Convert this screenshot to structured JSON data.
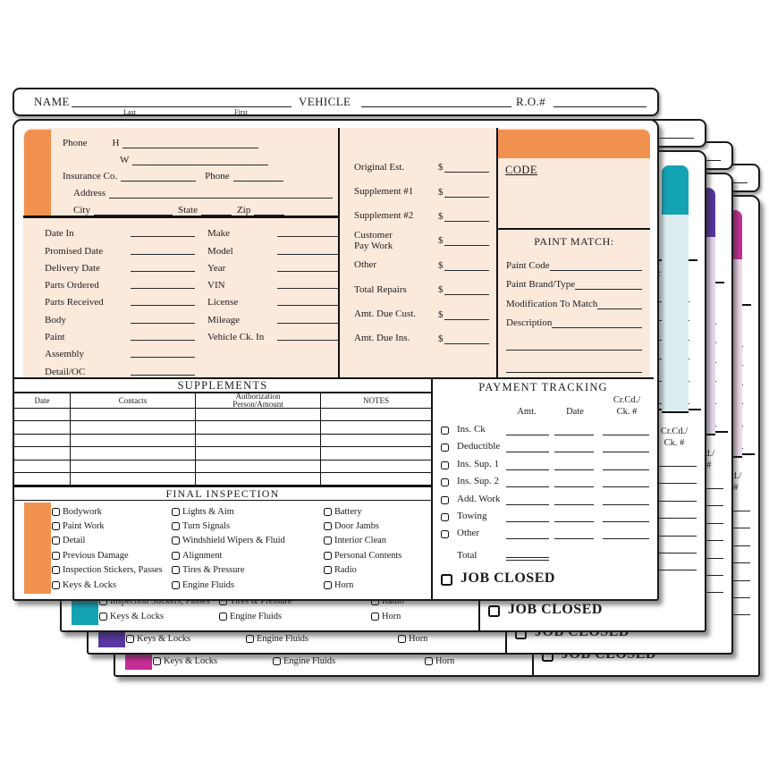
{
  "tab_header": {
    "name": "NAME",
    "last": "Last",
    "first": "First",
    "vehicle": "VEHICLE",
    "ro": "R.O.#"
  },
  "customer": {
    "phone": "Phone",
    "home": "H",
    "work": "W",
    "insurance_co": "Insurance Co.",
    "phone2": "Phone",
    "address": "Address",
    "city": "City",
    "state": "State",
    "zip": "Zip"
  },
  "schedule": {
    "left": [
      "Date In",
      "Promised Date",
      "Delivery Date",
      "Parts Ordered",
      "Parts Received",
      "Body",
      "Paint",
      "Assembly",
      "Detail/OC"
    ],
    "right": [
      "Make",
      "Model",
      "Year",
      "VIN",
      "License",
      "Mileage",
      "Vehicle Ck. In"
    ]
  },
  "estimates": {
    "currency": "$",
    "rows": [
      [
        "Original Est."
      ],
      [
        "Supplement #1"
      ],
      [
        "Supplement #2"
      ],
      [
        "Customer",
        "Pay Work"
      ],
      [
        "Other"
      ],
      [
        "Total Repairs"
      ],
      [
        "Amt. Due Cust."
      ],
      [
        "Amt. Due Ins."
      ]
    ]
  },
  "code_box": {
    "title": "CODE"
  },
  "paint_match": {
    "title": "PAINT MATCH:",
    "fields": [
      "Paint Code",
      "Paint Brand/Type",
      "Modification To Match",
      "Description"
    ]
  },
  "supplements": {
    "title": "SUPPLEMENTS",
    "columns": [
      [
        "Date"
      ],
      [
        "Contacts"
      ],
      [
        "Authorization",
        "Person/Amount"
      ],
      [
        "NOTES"
      ]
    ],
    "blank_row_count": 6
  },
  "payment": {
    "title": "PAYMENT TRACKING",
    "amt": "Amt.",
    "date": "Date",
    "crcd1": "Cr.Cd./",
    "crcd2": "Ck. #",
    "items": [
      "Ins. Ck",
      "Deductible",
      "Ins. Sup. 1",
      "Ins. Sup. 2",
      "Add. Work",
      "Towing",
      "Other"
    ],
    "total": "Total",
    "job_closed": "JOB CLOSED"
  },
  "inspection": {
    "title": "FINAL INSPECTION",
    "columns": [
      [
        "Bodywork",
        "Paint Work",
        "Detail",
        "Previous Damage",
        "Inspection Stickers, Passes",
        "Keys & Locks"
      ],
      [
        "Lights & Aim",
        "Turn Signals",
        "Windshield Wipers & Fluid",
        "Alignment",
        "Tires & Pressure",
        "Engine Fluids"
      ],
      [
        "Battery",
        "Door Jambs",
        "Interior Clean",
        "Personal Contents",
        "Radio",
        "Horn"
      ]
    ]
  },
  "sheets": [
    {
      "color_name": "orange",
      "accent": "#F0914F",
      "tint": "#FBE9DC"
    },
    {
      "color_name": "teal",
      "accent": "#14A3B3",
      "tint": "#DCEDF0"
    },
    {
      "color_name": "purple",
      "accent": "#5736A0",
      "tint": "#E3DCEF"
    },
    {
      "color_name": "magenta",
      "accent": "#C62E96",
      "tint": "#F0DAEA"
    }
  ]
}
